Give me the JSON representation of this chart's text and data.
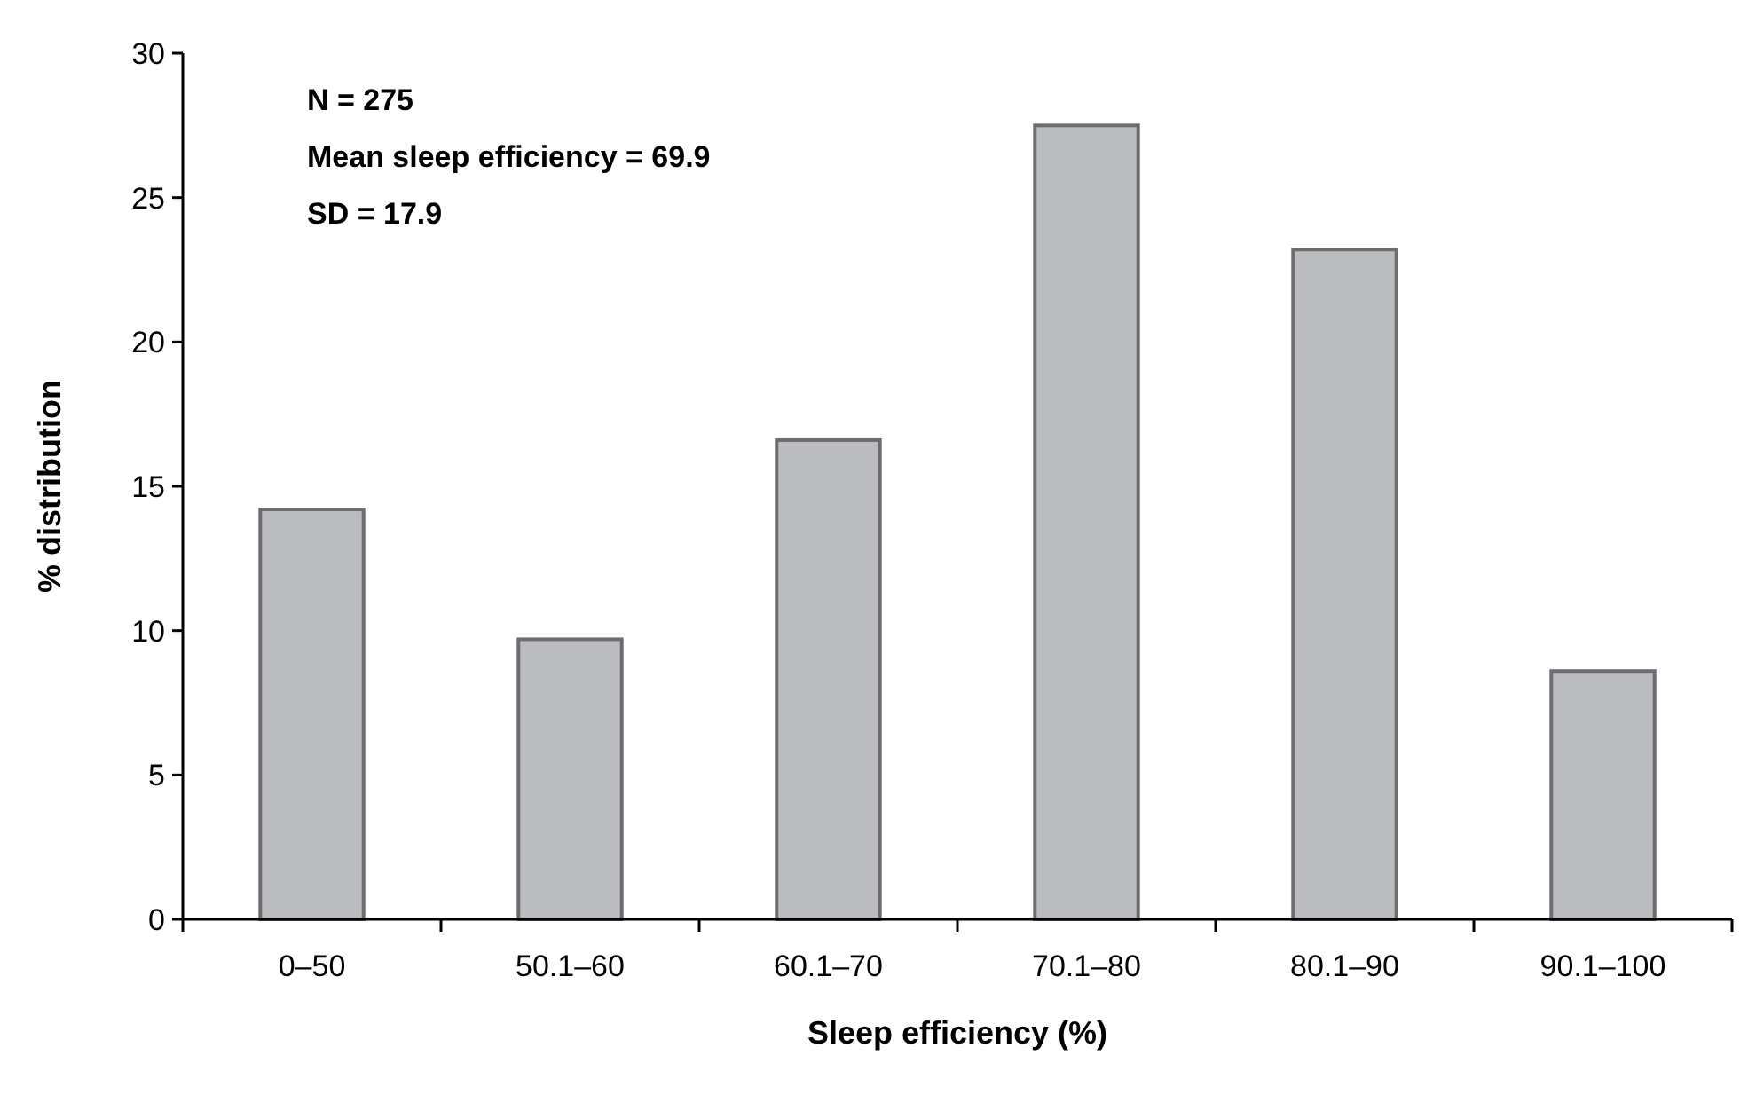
{
  "chart_data": {
    "type": "bar",
    "xlabel": "Sleep efficiency (%)",
    "ylabel": "% distribution",
    "categories": [
      "0–50",
      "50.1–60",
      "60.1–70",
      "70.1–80",
      "80.1–90",
      "90.1–100"
    ],
    "values": [
      14.2,
      9.7,
      16.6,
      27.5,
      23.2,
      8.6
    ],
    "color": "#bbbcc0",
    "ylim": [
      0,
      30
    ],
    "yticks": [
      0,
      5,
      10,
      15,
      20,
      25,
      30
    ],
    "grid": false,
    "annotations": [
      "N = 275",
      "Mean sleep efficiency = 69.9",
      "SD = 17.9"
    ]
  }
}
